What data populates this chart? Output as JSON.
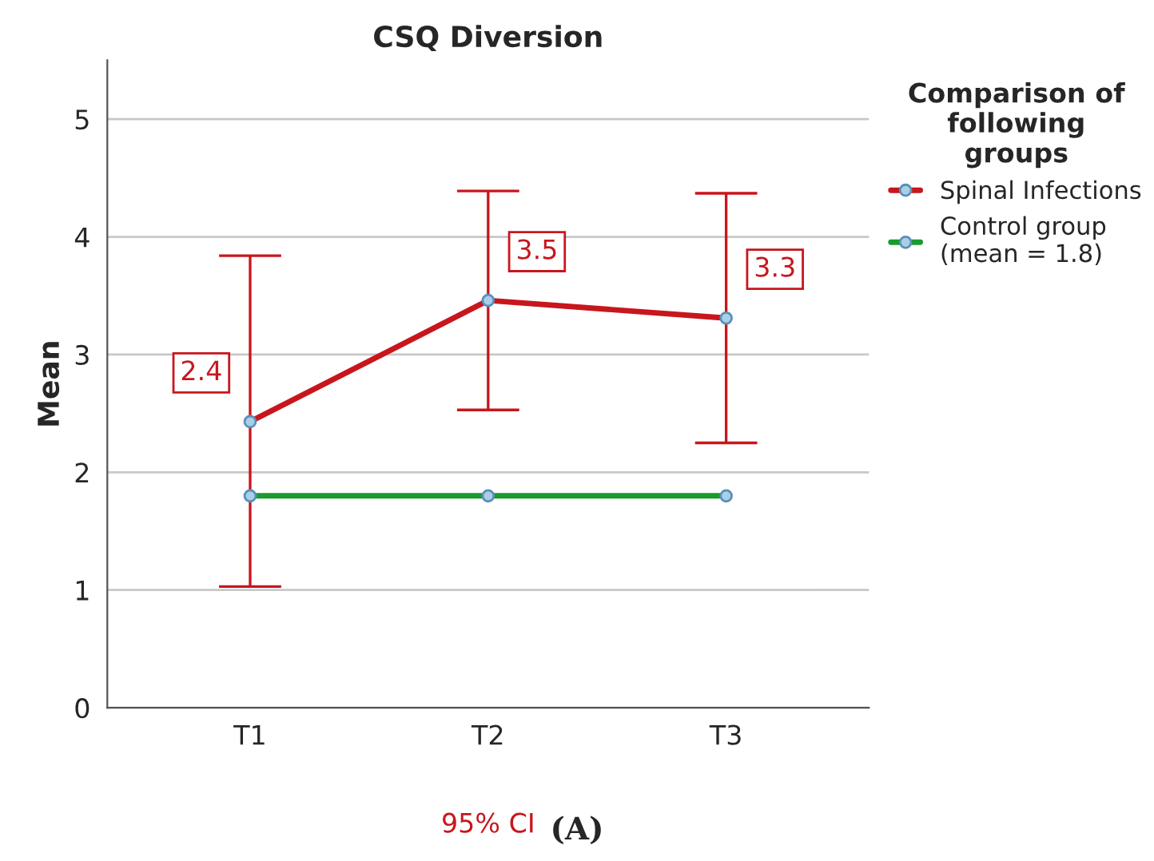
{
  "chart_data": {
    "type": "line",
    "title": "CSQ Diversion",
    "xlabel": "95% CI",
    "ylabel": "Mean",
    "legend_title": "Comparison of\nfollowing\ngroups",
    "categories": [
      "T1",
      "T2",
      "T3"
    ],
    "series": [
      {
        "name": "Spinal Infections",
        "color": "#c8161d",
        "values": [
          2.43,
          3.46,
          3.31
        ],
        "errors": [
          [
            1.03,
            3.84
          ],
          [
            2.53,
            4.39
          ],
          [
            2.25,
            4.37
          ]
        ],
        "value_labels": [
          "2.4",
          "3.5",
          "3.3"
        ]
      },
      {
        "name": "Control group\n(mean = 1.8)",
        "color": "#1a9a2e",
        "values": [
          1.8,
          1.8,
          1.8
        ]
      }
    ],
    "ylim": [
      0,
      5.5
    ],
    "yticks": [
      0,
      1,
      2,
      3,
      4,
      5
    ],
    "grid": "y",
    "legend": "right",
    "marker": "circle",
    "annotations": [
      "(A)"
    ]
  }
}
